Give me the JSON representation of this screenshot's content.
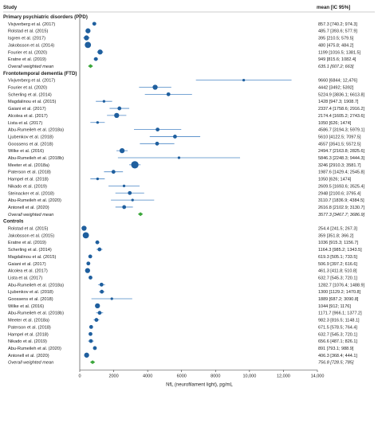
{
  "header": {
    "study_label": "Study",
    "mean_label": "mean [IC 95%]"
  },
  "chart_data": {
    "type": "forest",
    "xlabel": "NfL (neurofilament light), pg/mL",
    "xlim": [
      0,
      14000
    ],
    "xticks": [
      0,
      2000,
      4000,
      6000,
      8000,
      10000,
      12000,
      14000
    ],
    "xtick_labels": [
      "0",
      "2000",
      "4000",
      "6000",
      "8000",
      "10,000",
      "12,000",
      "14,000"
    ],
    "colors": {
      "study_marker": "#1f5f9e",
      "ci_line": "#4a86c5",
      "pooled_marker": "#3aa63a",
      "axis": "#333333"
    },
    "groups": [
      {
        "title": "Primary psychiatric disorders (PPD)",
        "rows": [
          {
            "study": "Vivjverberg et al. (2017)",
            "mean": 857.3,
            "low": 740.2,
            "high": 974.3,
            "label": "857.3 [740.2; 974.3]",
            "weight": 2
          },
          {
            "study": "Rolstad et al. (2015)",
            "mean": 485.7,
            "low": 393.6,
            "high": 577.9,
            "label": "485.7 [393.6; 577.9]",
            "weight": 3
          },
          {
            "study": "Isgren et al. (2017)",
            "mean": 395,
            "low": 210.5,
            "high": 579.5,
            "label": "395 [210.5; 579.5]",
            "weight": 3
          },
          {
            "study": "Jakobsson et al. (2014)",
            "mean": 480,
            "low": 475.8,
            "high": 484.2,
            "label": "480 [475.8; 484.2]",
            "weight": 4
          },
          {
            "study": "Fourier et al. (2020)",
            "mean": 1199,
            "low": 1016.5,
            "high": 1381.5,
            "label": "1199 [1016.5; 1381.5]",
            "weight": 3
          },
          {
            "study": "Eratne et al. (2019)",
            "mean": 949,
            "low": 815.6,
            "high": 1082.4,
            "label": "949 [815.6; 1082.4]",
            "weight": 2
          }
        ],
        "pooled": {
          "study": "Overall weighted mean",
          "mean": 635.1,
          "low": 607.2,
          "high": 663,
          "label": "635.1 [607.2; 663]"
        }
      },
      {
        "title": "Frontotemporal dementia (FTD)",
        "rows": [
          {
            "study": "Vivjverberg et al. (2017)",
            "mean": 9660,
            "low": 6844,
            "high": 12476,
            "label": "9660 [6844; 12,476]",
            "weight": 1
          },
          {
            "study": "Fourier et al. (2020)",
            "mean": 4442,
            "low": 3492,
            "high": 5392,
            "label": "4442 [3492; 5392]",
            "weight": 3
          },
          {
            "study": "Scherling et al. (2014)",
            "mean": 5224.9,
            "low": 3836.1,
            "high": 6613.8,
            "label": "5224.9 [3836.1; 6613.8]",
            "weight": 2
          },
          {
            "study": "Magdalinou et al. (2015)",
            "mean": 1428,
            "low": 947.3,
            "high": 1908.7,
            "label": "1428 [947.3; 1908.7]",
            "weight": 1
          },
          {
            "study": "Gaiani et al. (2017)",
            "mean": 2337.4,
            "low": 1758.6,
            "high": 2916.2,
            "label": "2337.4 [1758.6; 2916.2]",
            "weight": 2
          },
          {
            "study": "Alcolea et al. (2017)",
            "mean": 2174.4,
            "low": 1605.2,
            "high": 2743.6,
            "label": "2174.4 [1605.2; 2743.6]",
            "weight": 3
          },
          {
            "study": "Lista et al. (2017)",
            "mean": 1050,
            "low": 626,
            "high": 1474,
            "label": "1050 [626; 1474]",
            "weight": 1
          },
          {
            "study": "Abu-Rumeileh et al. (2018a)",
            "mean": 4586.7,
            "low": 3194.3,
            "high": 5979.1,
            "label": "4586.7 [3194.3; 5979.1]",
            "weight": 2
          },
          {
            "study": "Ljubenkov et al. (2018)",
            "mean": 5610,
            "low": 4122.5,
            "high": 7097.5,
            "label": "5610 [4122.5; 7097.5]",
            "weight": 2
          },
          {
            "study": "Goossens et al. (2018)",
            "mean": 4557,
            "low": 3541.5,
            "high": 5572.5,
            "label": "4557 [3541.5; 5572.5]",
            "weight": 2
          },
          {
            "study": "Wilke et al. (2016)",
            "mean": 2494.7,
            "low": 2163.8,
            "high": 2825.6,
            "label": "2494.7 [2163.8; 2825.6]",
            "weight": 3
          },
          {
            "study": "Abu-Rumeileh et al. (2018b)",
            "mean": 5846.3,
            "low": 2248.3,
            "high": 9444.3,
            "label": "5846.3 [2248.3; 9444.3]",
            "weight": 1
          },
          {
            "study": "Meeter et al. (2018a)",
            "mean": 3246,
            "low": 2910.3,
            "high": 3581.7,
            "label": "3246 [2910.3; 3581.7]",
            "weight": 5
          },
          {
            "study": "Paterson et al. (2018)",
            "mean": 1987.6,
            "low": 1429.4,
            "high": 2545.8,
            "label": "1987.6 [1429.4; 2545.8]",
            "weight": 2
          },
          {
            "study": "Hampel et al. (2018)",
            "mean": 1050,
            "low": 626,
            "high": 1474,
            "label": "1050 [626; 1474]",
            "weight": 1
          },
          {
            "study": "Nikado et al. (2019)",
            "mean": 2609.5,
            "low": 1693.6,
            "high": 3525.4,
            "label": "2609.5 [1693.6; 3525.4]",
            "weight": 1
          },
          {
            "study": "Steinacker et al. (2018)",
            "mean": 2948,
            "low": 2100.6,
            "high": 3795.4,
            "label": "2948 [2100.6; 3795.4]",
            "weight": 2
          },
          {
            "study": "Abu-Rumeileh et al. (2020)",
            "mean": 3110.7,
            "low": 1836.9,
            "high": 4384.5,
            "label": "3110.7 [1836.9; 4384.5]",
            "weight": 1
          },
          {
            "study": "Antonell et al. (2020)",
            "mean": 2616.8,
            "low": 2102.9,
            "high": 3130.7,
            "label": "2616.8 [2102.9; 3130.7]",
            "weight": 2
          }
        ],
        "pooled": {
          "study": "Overall weighted mean",
          "mean": 3577.3,
          "low": 3467.7,
          "high": 3686.9,
          "label": "3577.3 [3467.7; 3686.9]"
        }
      },
      {
        "title": "Controls",
        "rows": [
          {
            "study": "Rolstad et al. (2015)",
            "mean": 254.4,
            "low": 241.5,
            "high": 267.3,
            "label": "254.4 [241.5; 267.3]",
            "weight": 3
          },
          {
            "study": "Jakobsson et al. (2015)",
            "mean": 359,
            "low": 351.8,
            "high": 366.2,
            "label": "359 [351.8; 366.2]",
            "weight": 4
          },
          {
            "study": "Eratne et al. (2019)",
            "mean": 1036,
            "low": 915.3,
            "high": 1156.7,
            "label": "1036 [915.3; 1156.7]",
            "weight": 2
          },
          {
            "study": "Scherling et al. (2014)",
            "mean": 1164.3,
            "low": 985.2,
            "high": 1343.5,
            "label": "1164.3 [985.2; 1343.5]",
            "weight": 2
          },
          {
            "study": "Magdalinou et al. (2015)",
            "mean": 619.3,
            "low": 505.1,
            "high": 733.5,
            "label": "619.3 [505.1; 733.5]",
            "weight": 2
          },
          {
            "study": "Gaiani et al. (2017)",
            "mean": 506.9,
            "low": 397.2,
            "high": 616.6,
            "label": "506.9 [397.2; 616.6]",
            "weight": 2
          },
          {
            "study": "Alcolea et al. (2017)",
            "mean": 461.3,
            "low": 411.8,
            "high": 510.8,
            "label": "461.3 [411.8; 510.8]",
            "weight": 3
          },
          {
            "study": "Lista et al. (2017)",
            "mean": 632.7,
            "low": 545.3,
            "high": 720.1,
            "label": "632.7 [545.3; 720.1]",
            "weight": 2
          },
          {
            "study": "Abu-Rumeileh et al. (2018a)",
            "mean": 1282.7,
            "low": 1076.4,
            "high": 1488.9,
            "label": "1282.7 [1076.4; 1488.9]",
            "weight": 2
          },
          {
            "study": "Ljubenkov et al. (2018)",
            "mean": 1300,
            "low": 1129.2,
            "high": 1470.8,
            "label": "1300 [1129.2; 1470.8]",
            "weight": 2
          },
          {
            "study": "Goossens et al. (2018)",
            "mean": 1889,
            "low": 687.2,
            "high": 3090.8,
            "label": "1889 [687.2; 3090.8]",
            "weight": 1
          },
          {
            "study": "Wilke et al. (2016)",
            "mean": 1044,
            "low": 912,
            "high": 1176,
            "label": "1044 [912; 1176]",
            "weight": 3
          },
          {
            "study": "Abu-Rumeileh et al. (2018b)",
            "mean": 1171.7,
            "low": 966.1,
            "high": 1377.2,
            "label": "1171.7 [966.1; 1377.2]",
            "weight": 2
          },
          {
            "study": "Meeter et al. (2018a)",
            "mean": 982.3,
            "low": 816.5,
            "high": 1148.1,
            "label": "982.3 [816.5; 1148.1]",
            "weight": 2
          },
          {
            "study": "Paterson et al. (2018)",
            "mean": 671.5,
            "low": 578.5,
            "high": 764.4,
            "label": "671.5 [578.5; 764.4]",
            "weight": 2
          },
          {
            "study": "Hampel et al. (2018)",
            "mean": 632.7,
            "low": 545.3,
            "high": 720.1,
            "label": "632.7 [545.3; 720.1]",
            "weight": 2
          },
          {
            "study": "Nikado et al. (2019)",
            "mean": 656.6,
            "low": 487.1,
            "high": 826.1,
            "label": "656.6 [487.1; 826.1]",
            "weight": 2
          },
          {
            "study": "Abu-Rumeileh et al. (2020)",
            "mean": 891,
            "low": 793.1,
            "high": 988.9,
            "label": "891 [793.1; 988.9]",
            "weight": 2
          },
          {
            "study": "Antonell et al. (2020)",
            "mean": 406.3,
            "low": 368.4,
            "high": 444.1,
            "label": "406.3 [368.4; 444.1]",
            "weight": 3
          }
        ],
        "pooled": {
          "study": "Overall weighted mean",
          "mean": 756.8,
          "low": 728.5,
          "high": 785,
          "label": "756.8 [728.5; 785]"
        }
      }
    ]
  }
}
